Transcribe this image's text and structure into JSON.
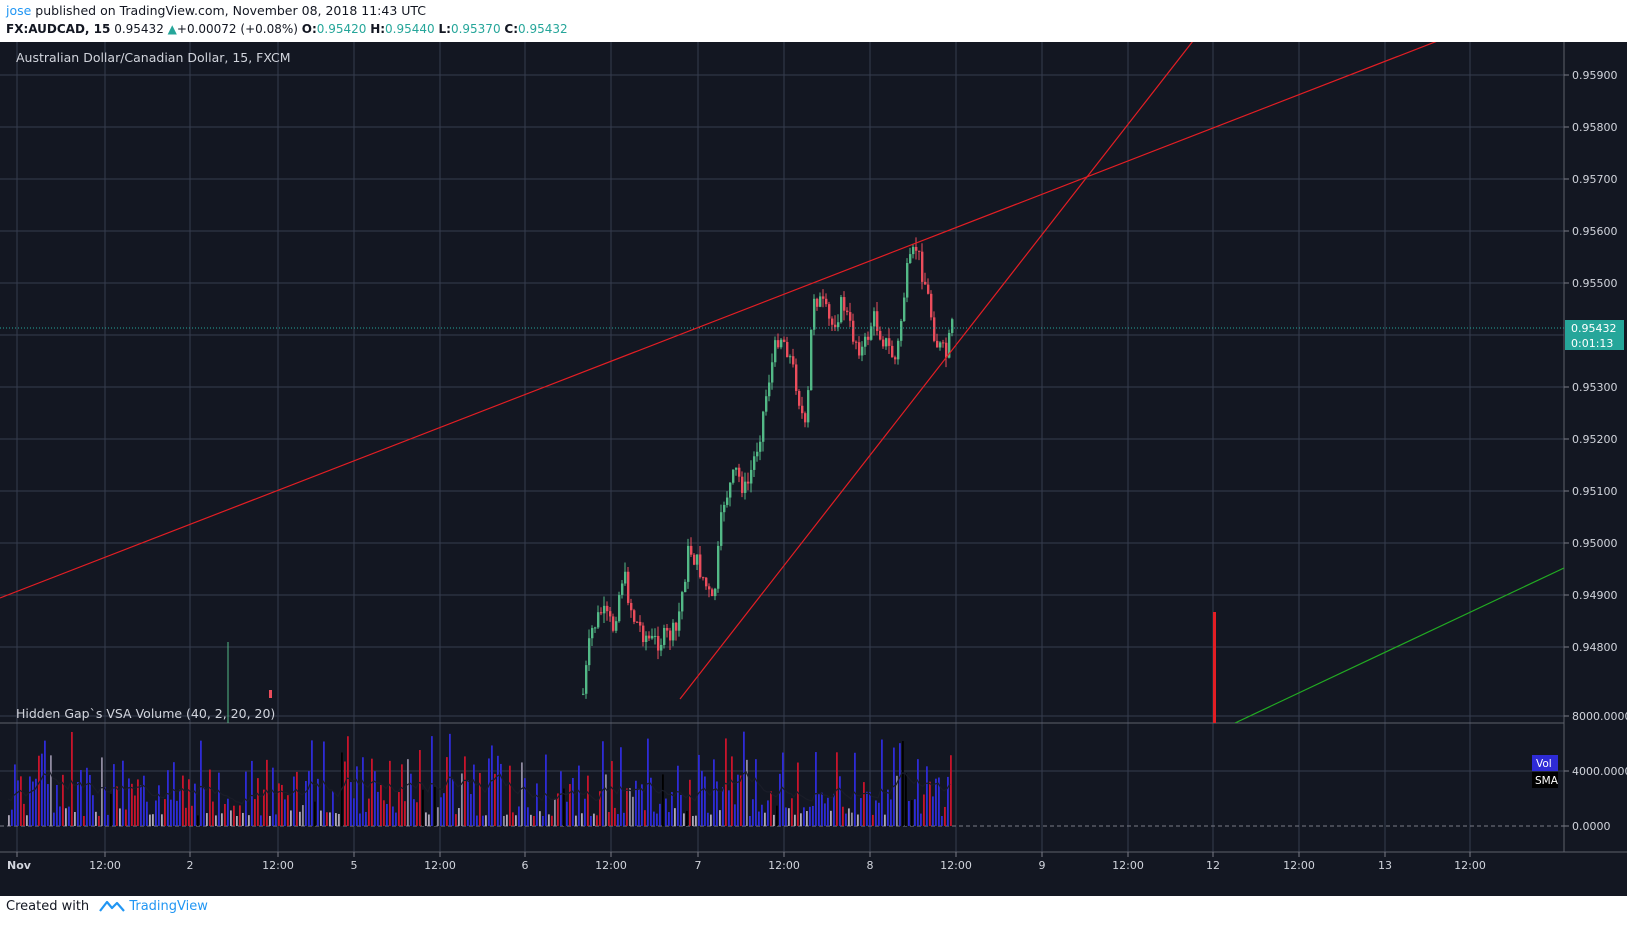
{
  "header": {
    "user": "jose",
    "published": " published on TradingView.com, November 08, 2018 11:43 UTC",
    "symbol": "FX:AUDCAD, 15",
    "price": "0.95432",
    "change": "+0.00072 (+0.08%)",
    "o_label": "O:",
    "o_value": "0.95420",
    "h_label": "H:",
    "h_value": "0.95440",
    "l_label": "L:",
    "l_value": "0.95370",
    "c_label": "C:",
    "c_value": "0.95432"
  },
  "main_pane": {
    "title": "Australian Dollar/Canadian Dollar, 15, FXCM",
    "price_axis": [
      "0.95900",
      "0.95800",
      "0.95700",
      "0.95600",
      "0.95500",
      "0.95300",
      "0.95200",
      "0.95100",
      "0.95000",
      "0.94900",
      "0.94800"
    ],
    "last_price_label": "0.95432",
    "countdown_label": "0:01:13"
  },
  "volume_pane": {
    "title": "Hidden Gap`s VSA Volume (40, 2, 20, 20)",
    "axis": [
      "8000.0000",
      "4000.0000",
      "0.0000"
    ],
    "legend": [
      "Vol",
      "SMA"
    ]
  },
  "time_axis": [
    "Nov",
    "12:00",
    "2",
    "12:00",
    "5",
    "12:00",
    "6",
    "12:00",
    "7",
    "12:00",
    "8",
    "12:00",
    "9",
    "12:00",
    "12",
    "12:00",
    "13",
    "12:00"
  ],
  "colors": {
    "background": "#131722",
    "grid": "#363c4e",
    "up_candle": "#53b987",
    "down_candle": "#eb4d5c",
    "trendline": "#e31e24",
    "green_line": "#22ab22",
    "last_price": "#26a69a",
    "vol_blue": "#2e2bd6",
    "vol_red": "#c8142b"
  },
  "footer": {
    "created_with": "Created with",
    "brand": "TradingView"
  }
}
